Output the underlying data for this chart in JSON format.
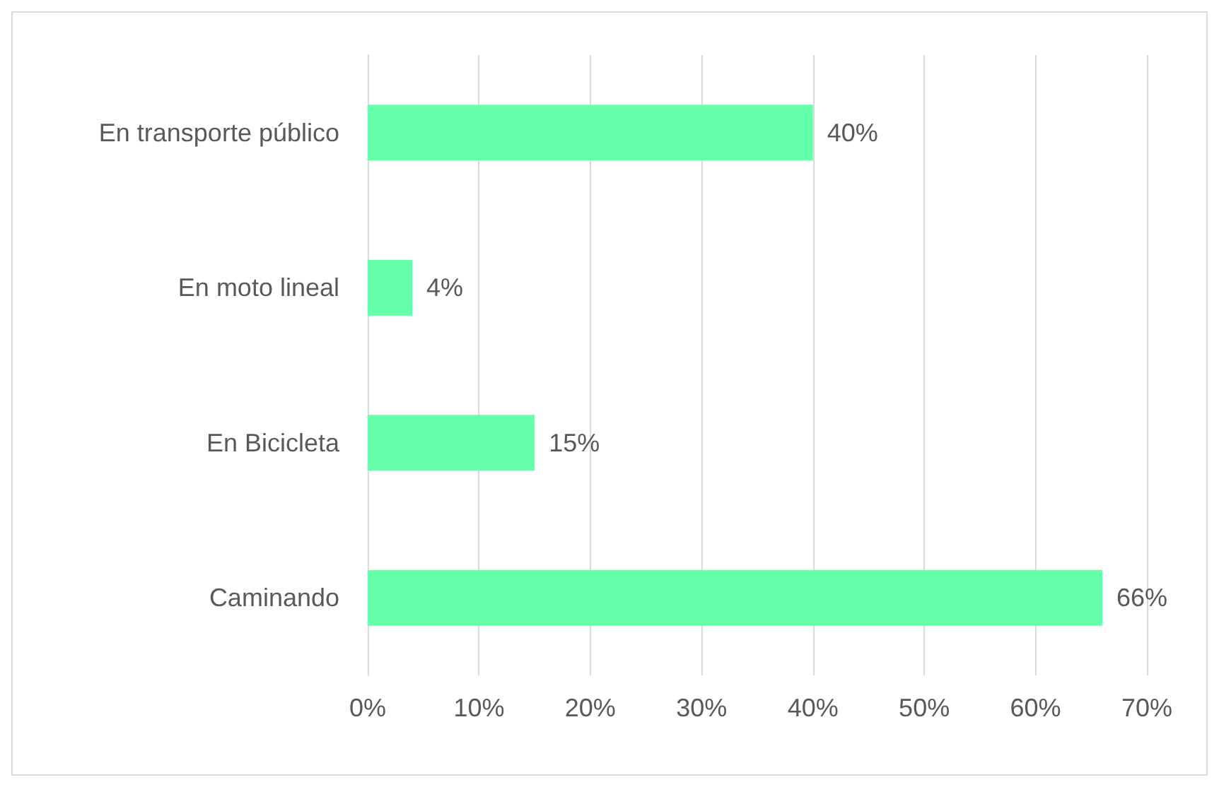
{
  "chart_data": {
    "type": "bar",
    "orientation": "horizontal",
    "categories": [
      "En transporte público",
      "En moto lineal",
      "En Bicicleta",
      "Caminando"
    ],
    "values": [
      40,
      4,
      15,
      66
    ],
    "value_labels": [
      "40%",
      "4%",
      "15%",
      "66%"
    ],
    "color": "#66ffaa",
    "xlim": [
      0,
      70
    ],
    "xticks": [
      {
        "value": 0,
        "label": "0%"
      },
      {
        "value": 10,
        "label": "10%"
      },
      {
        "value": 20,
        "label": "20%"
      },
      {
        "value": 30,
        "label": "30%"
      },
      {
        "value": 40,
        "label": "40%"
      },
      {
        "value": 50,
        "label": "50%"
      },
      {
        "value": 60,
        "label": "60%"
      },
      {
        "value": 70,
        "label": "70%"
      }
    ],
    "grid": "x"
  }
}
